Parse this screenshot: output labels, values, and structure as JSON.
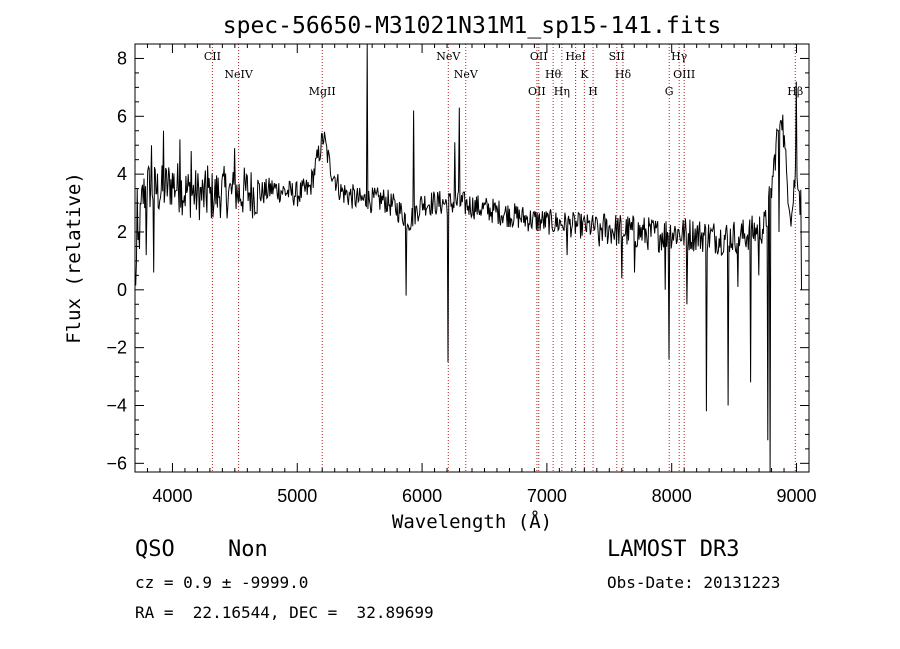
{
  "chart_data": {
    "type": "line",
    "title": "spec-56650-M31021N31M1_sp15-141.fits",
    "xlabel": "Wavelength (Å)",
    "ylabel": "Flux (relative)",
    "xlim": [
      3700,
      9100
    ],
    "ylim": [
      -6.3,
      8.5
    ],
    "xticks": [
      4000,
      5000,
      6000,
      7000,
      8000,
      9000
    ],
    "yticks": [
      -6,
      -4,
      -2,
      0,
      2,
      4,
      6,
      8
    ],
    "lines": [
      {
        "name": "CII",
        "wl": 4320
      },
      {
        "name": "NeIV",
        "wl": 4530
      },
      {
        "name": "MgII",
        "wl": 5200
      },
      {
        "name": "NeV",
        "wl": 6210
      },
      {
        "name": "NeV",
        "wl": 6350
      },
      {
        "name": "OII",
        "wl": 6920
      },
      {
        "name": "OII",
        "wl": 6935
      },
      {
        "name": "Hθ",
        "wl": 7050
      },
      {
        "name": "Hη",
        "wl": 7120
      },
      {
        "name": "HeI",
        "wl": 7230
      },
      {
        "name": "K",
        "wl": 7300
      },
      {
        "name": "H",
        "wl": 7370
      },
      {
        "name": "SII",
        "wl": 7560
      },
      {
        "name": "Hδ",
        "wl": 7610
      },
      {
        "name": "G",
        "wl": 7980
      },
      {
        "name": "Hγ",
        "wl": 8060
      },
      {
        "name": "OIII",
        "wl": 8100
      },
      {
        "name": "Hβ",
        "wl": 8990
      }
    ],
    "spectrum_anchors": [
      [
        3700,
        0.2
      ],
      [
        3760,
        3.2
      ],
      [
        3800,
        3.6
      ],
      [
        3900,
        3.4
      ],
      [
        4000,
        3.7
      ],
      [
        4100,
        3.4
      ],
      [
        4200,
        3.3
      ],
      [
        4300,
        3.2
      ],
      [
        4400,
        3.4
      ],
      [
        4500,
        3.3
      ],
      [
        4600,
        3.4
      ],
      [
        4700,
        3.3
      ],
      [
        4800,
        3.5
      ],
      [
        4900,
        3.4
      ],
      [
        5000,
        3.3
      ],
      [
        5100,
        3.5
      ],
      [
        5180,
        4.8
      ],
      [
        5210,
        5.3
      ],
      [
        5260,
        4.3
      ],
      [
        5350,
        3.4
      ],
      [
        5500,
        3.1
      ],
      [
        5700,
        3.1
      ],
      [
        5800,
        2.8
      ],
      [
        5900,
        2.4
      ],
      [
        6000,
        3.0
      ],
      [
        6100,
        3.0
      ],
      [
        6300,
        3.0
      ],
      [
        6500,
        2.8
      ],
      [
        6700,
        2.6
      ],
      [
        6900,
        2.4
      ],
      [
        7100,
        2.3
      ],
      [
        7300,
        2.2
      ],
      [
        7500,
        2.1
      ],
      [
        7700,
        2.0
      ],
      [
        7900,
        1.9
      ],
      [
        8000,
        2.0
      ],
      [
        8200,
        1.9
      ],
      [
        8400,
        1.8
      ],
      [
        8600,
        1.9
      ],
      [
        8750,
        2.2
      ],
      [
        8800,
        3.5
      ],
      [
        8850,
        5.5
      ],
      [
        8880,
        6.3
      ],
      [
        8920,
        4.0
      ],
      [
        8960,
        2.5
      ],
      [
        9000,
        4.5
      ],
      [
        9030,
        3.0
      ]
    ],
    "spikes": [
      [
        3720,
        3.5
      ],
      [
        3790,
        1.2
      ],
      [
        3830,
        5.0
      ],
      [
        3850,
        0.6
      ],
      [
        3930,
        5.5
      ],
      [
        4060,
        5.2
      ],
      [
        4150,
        4.8
      ],
      [
        4280,
        4.3
      ],
      [
        4500,
        4.9
      ],
      [
        5560,
        8.5
      ],
      [
        5870,
        -0.2
      ],
      [
        5930,
        6.2
      ],
      [
        6210,
        -2.5
      ],
      [
        6260,
        5.1
      ],
      [
        6300,
        6.3
      ],
      [
        6700,
        2.8
      ],
      [
        7160,
        1.2
      ],
      [
        7420,
        1.5
      ],
      [
        7600,
        0.4
      ],
      [
        7700,
        0.6
      ],
      [
        7950,
        0.0
      ],
      [
        7980,
        -2.4
      ],
      [
        8120,
        -0.5
      ],
      [
        8280,
        -4.2
      ],
      [
        8450,
        -4.0
      ],
      [
        8530,
        0.1
      ],
      [
        8630,
        -3.2
      ],
      [
        8700,
        0.5
      ],
      [
        8770,
        -5.2
      ],
      [
        8790,
        -6.3
      ],
      [
        8860,
        2.0
      ],
      [
        9000,
        7.2
      ],
      [
        9040,
        0.0
      ]
    ]
  },
  "footer": {
    "class_label": "QSO",
    "subclass_label": "Non",
    "survey": "LAMOST DR3",
    "cz": "cz = 0.9 ± -9999.0",
    "obs_date": "Obs-Date: 20131223",
    "radec": "RA =  22.16544, DEC =  32.89699"
  }
}
